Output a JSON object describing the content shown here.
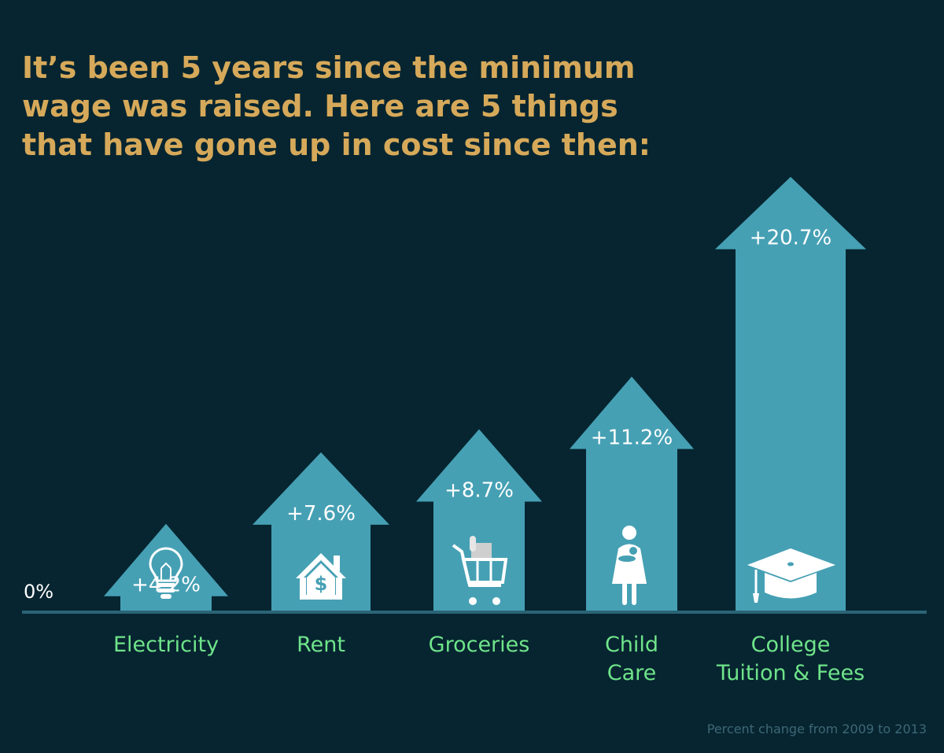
{
  "title_lines": [
    "It’s been 5 years since the minimum",
    "wage was raised. Here are 5 things",
    "that have gone up in cost since then:"
  ],
  "colors": {
    "background": "#062530",
    "arrow": "#46a0b4",
    "title": "#d6a95a",
    "category_label": "#6fe48a",
    "value_label": "#ffffff",
    "baseline": "#2b6477",
    "footnote": "#3e6777",
    "icon": "#ffffff"
  },
  "chart_data": {
    "type": "bar",
    "title": "It’s been 5 years since the minimum wage was raised. Here are 5 things that have gone up in cost since then:",
    "xlabel": "",
    "ylabel": "",
    "baseline_label": "0%",
    "ylim": [
      0,
      22
    ],
    "categories": [
      [
        "Electricity"
      ],
      [
        "Rent"
      ],
      [
        "Groceries"
      ],
      [
        "Child",
        "Care"
      ],
      [
        "College",
        "Tuition & Fees"
      ]
    ],
    "values": [
      4.2,
      7.6,
      8.7,
      11.2,
      20.7
    ],
    "value_labels": [
      "+4.2%",
      "+7.6%",
      "+8.7%",
      "+11.2%",
      "+20.7%"
    ],
    "icons": [
      "lightbulb-icon",
      "house-dollar-icon",
      "shopping-cart-icon",
      "mother-child-icon",
      "graduation-cap-icon"
    ],
    "note": "Percent change from 2009 to 2013"
  }
}
